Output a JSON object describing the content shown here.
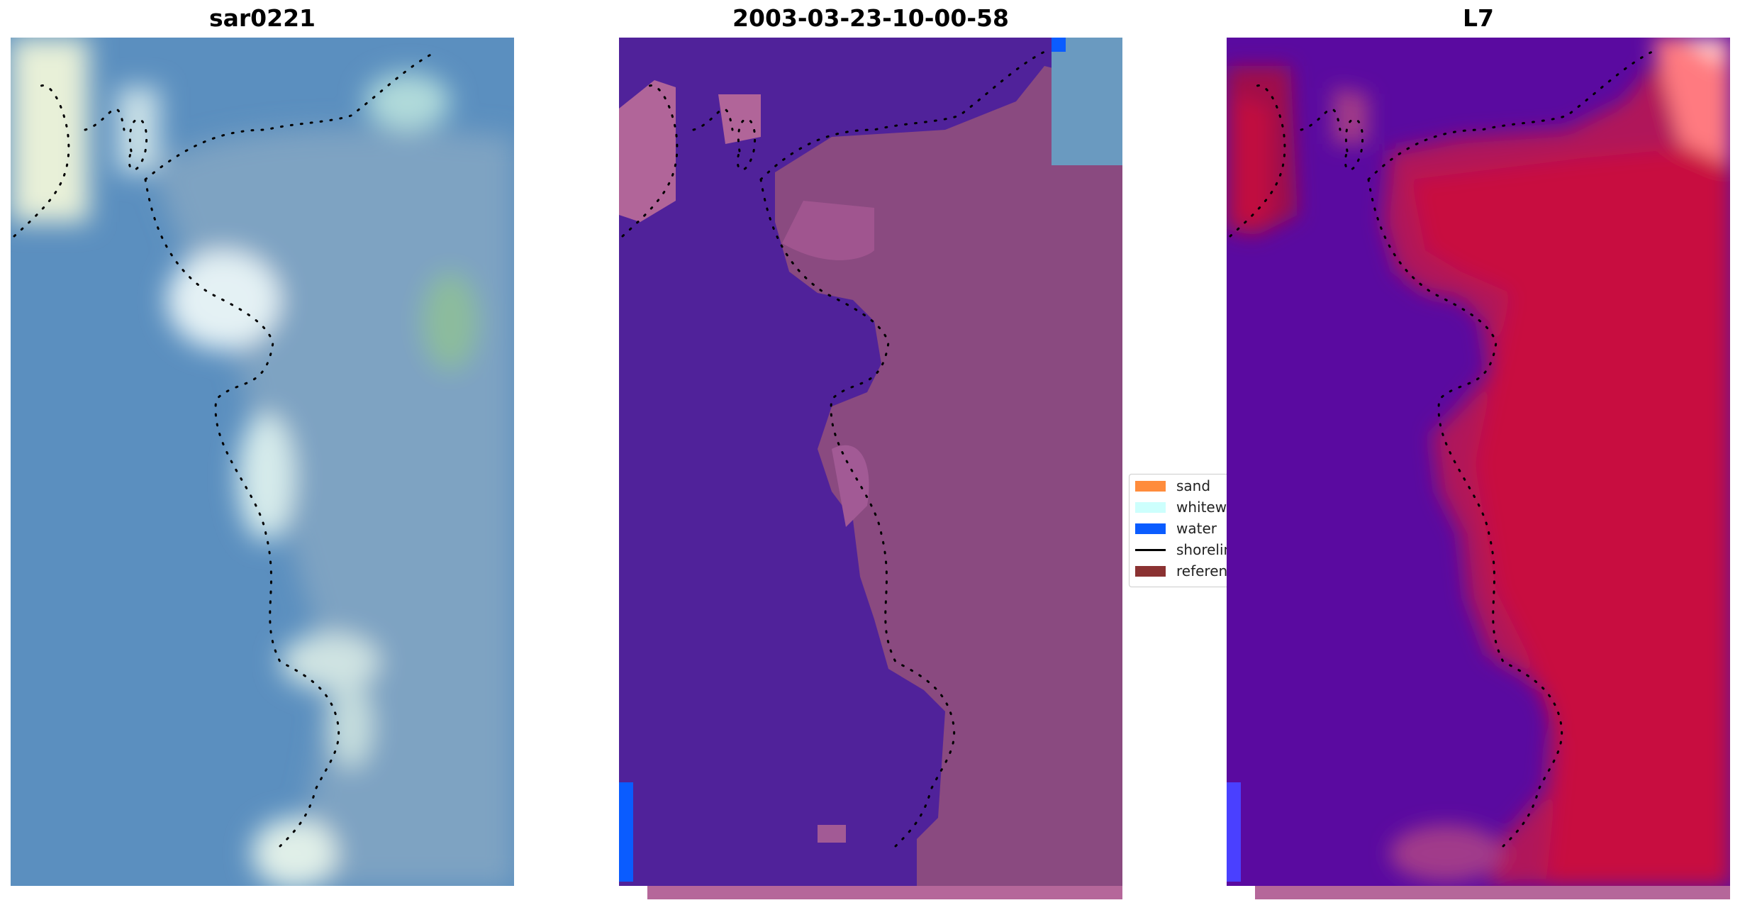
{
  "titles": {
    "panel1": "sar0221",
    "panel2": "2003-03-23-10-00-58",
    "panel3": "L7"
  },
  "legend": {
    "items": [
      {
        "label": "sand",
        "color": "#ff8c3c"
      },
      {
        "label": "whitewater",
        "color": "#cdfffd"
      },
      {
        "label": "water",
        "color": "#0a5cff"
      },
      {
        "label": "shoreline",
        "color": "#000000"
      },
      {
        "label": "reference shoreline",
        "color": "#8b3232"
      }
    ]
  },
  "colors": {
    "rgb_water": "#5b8fbf",
    "rgb_foam": "#cfe6e6",
    "class_water": "#50229a",
    "class_land": "#8a4a80",
    "class_blue": "#0a5cff",
    "index_low": "#5a0aa0",
    "index_high": "#c81040",
    "ref_strip": "#b5679a"
  }
}
